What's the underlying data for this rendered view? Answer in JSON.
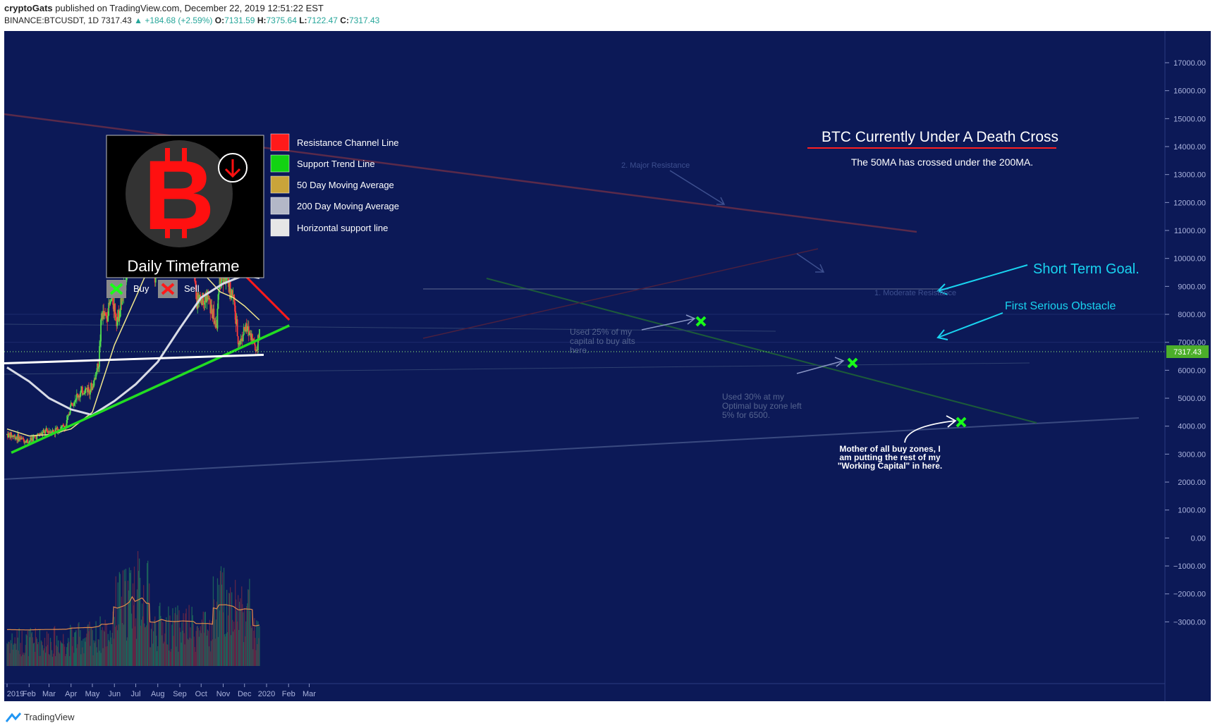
{
  "header": {
    "author": "cryptoGats",
    "published": "published on TradingView.com, December 22, 2019 12:51:22 EST",
    "symbol": "BINANCE:BTCUSDT, 1D",
    "last": "7317.43",
    "change": "▲ +184.68 (+2.59%)",
    "o_label": "O:",
    "o_val": "7131.59",
    "h_label": "H:",
    "h_val": "7375.64",
    "l_label": "L:",
    "l_val": "7122.47",
    "c_label": "C:",
    "c_val": "7317.43"
  },
  "footer": {
    "brand": "TradingView"
  },
  "legend": {
    "items": [
      {
        "label": "Resistance Channel Line",
        "color": "#ff1a1a"
      },
      {
        "label": "Support Trend Line",
        "color": "#12d312"
      },
      {
        "label": "50 Day Moving Average",
        "color": "#c9a43a"
      },
      {
        "label": "200 Day Moving Average",
        "color": "#b3b7c7"
      },
      {
        "label": "Horizontal support line",
        "color": "#e6e6e6"
      }
    ],
    "buy_label": "Buy",
    "sell_label": "Sell",
    "timeframe": "Daily Timeframe"
  },
  "annotations": {
    "death_cross_title": "BTC Currently Under A Death Cross",
    "death_cross_sub": "The 50MA has crossed under the 200MA.",
    "short_term_goal": "Short Term Goal.",
    "first_obstacle": "First Serious Obstacle",
    "major_resistance": "2. Major Resistance",
    "moderate_resistance": "1. Moderate Resistance",
    "used25": [
      "Used 25% of my",
      "capital to buy alts",
      "here."
    ],
    "used30": [
      "Used 30% at my",
      "Optimal buy zone left",
      "5% for 6500."
    ],
    "mother": [
      "Mother of all buy zones, I",
      "am putting the rest of my",
      "\"Working Capital\" in here."
    ]
  },
  "price_tag": "7317.43",
  "chart_data": {
    "type": "candlestick",
    "symbol": "BINANCE:BTCUSDT",
    "timeframe": "1D",
    "y_ticks": [
      "17000.00",
      "16000.00",
      "15000.00",
      "14000.00",
      "13000.00",
      "12000.00",
      "11000.00",
      "10000.00",
      "9000.00",
      "8000.00",
      "7000.00",
      "6000.00",
      "5000.00",
      "4000.00",
      "3000.00",
      "2000.00",
      "1000.00",
      "0.00",
      "−1000.00",
      "−2000.00",
      "−3000.00"
    ],
    "x_ticks": [
      "2019",
      "Feb",
      "Mar",
      "Apr",
      "May",
      "Jun",
      "Jul",
      "Aug",
      "Sep",
      "Oct",
      "Nov",
      "Dec",
      "2020",
      "Feb",
      "Mar"
    ],
    "ylim": [
      -3300,
      17500
    ],
    "close_points": [
      [
        "2019-01-01",
        3700
      ],
      [
        "2019-01-10",
        3650
      ],
      [
        "2019-01-20",
        3550
      ],
      [
        "2019-01-31",
        3450
      ],
      [
        "2019-02-08",
        3600
      ],
      [
        "2019-02-24",
        3800
      ],
      [
        "2019-03-10",
        3850
      ],
      [
        "2019-03-25",
        4000
      ],
      [
        "2019-04-02",
        4900
      ],
      [
        "2019-04-20",
        5300
      ],
      [
        "2019-05-01",
        5400
      ],
      [
        "2019-05-10",
        6300
      ],
      [
        "2019-05-14",
        8000
      ],
      [
        "2019-05-20",
        7900
      ],
      [
        "2019-05-29",
        8600
      ],
      [
        "2019-06-05",
        7800
      ],
      [
        "2019-06-15",
        8900
      ],
      [
        "2019-06-22",
        10500
      ],
      [
        "2019-06-26",
        12800
      ],
      [
        "2019-06-30",
        10800
      ],
      [
        "2019-07-10",
        12300
      ],
      [
        "2019-07-16",
        10000
      ],
      [
        "2019-07-28",
        9500
      ],
      [
        "2019-08-06",
        11800
      ],
      [
        "2019-08-14",
        10500
      ],
      [
        "2019-08-25",
        10100
      ],
      [
        "2019-09-05",
        10600
      ],
      [
        "2019-09-20",
        10200
      ],
      [
        "2019-09-24",
        8500
      ],
      [
        "2019-10-10",
        8600
      ],
      [
        "2019-10-23",
        7500
      ],
      [
        "2019-10-26",
        9250
      ],
      [
        "2019-11-05",
        9300
      ],
      [
        "2019-11-15",
        8600
      ],
      [
        "2019-11-22",
        7100
      ],
      [
        "2019-11-25",
        7000
      ],
      [
        "2019-12-01",
        7500
      ],
      [
        "2019-12-10",
        7300
      ],
      [
        "2019-12-17",
        6700
      ],
      [
        "2019-12-22",
        7317
      ]
    ],
    "ma50": [
      [
        "2019-01-01",
        3900
      ],
      [
        "2019-02-01",
        3650
      ],
      [
        "2019-03-01",
        3700
      ],
      [
        "2019-04-01",
        3900
      ],
      [
        "2019-05-01",
        4500
      ],
      [
        "2019-06-01",
        6900
      ],
      [
        "2019-07-01",
        8600
      ],
      [
        "2019-07-20",
        9700
      ],
      [
        "2019-08-10",
        10400
      ],
      [
        "2019-09-01",
        10500
      ],
      [
        "2019-09-20",
        10100
      ],
      [
        "2019-10-10",
        9300
      ],
      [
        "2019-10-28",
        8800
      ],
      [
        "2019-11-15",
        8600
      ],
      [
        "2019-12-01",
        8300
      ],
      [
        "2019-12-22",
        7800
      ]
    ],
    "ma200": [
      [
        "2019-01-01",
        6100
      ],
      [
        "2019-02-01",
        5600
      ],
      [
        "2019-03-01",
        5000
      ],
      [
        "2019-04-01",
        4600
      ],
      [
        "2019-05-01",
        4400
      ],
      [
        "2019-06-01",
        4900
      ],
      [
        "2019-07-01",
        5500
      ],
      [
        "2019-08-01",
        6300
      ],
      [
        "2019-09-01",
        7500
      ],
      [
        "2019-10-01",
        8600
      ],
      [
        "2019-11-01",
        9100
      ],
      [
        "2019-12-01",
        9400
      ],
      [
        "2019-12-22",
        9300
      ]
    ],
    "lines": {
      "resistance_channel": [
        [
          "2019-06-27",
          13400
        ],
        [
          "2020-02-02",
          7800
        ]
      ],
      "support_trend": [
        [
          "2019-01-07",
          3050
        ],
        [
          "2020-02-02",
          7600
        ]
      ],
      "horizontal_support": [
        [
          "2018-12-28",
          6250
        ],
        [
          "2019-12-28",
          6550
        ]
      ]
    },
    "last_price": 7317.43
  }
}
